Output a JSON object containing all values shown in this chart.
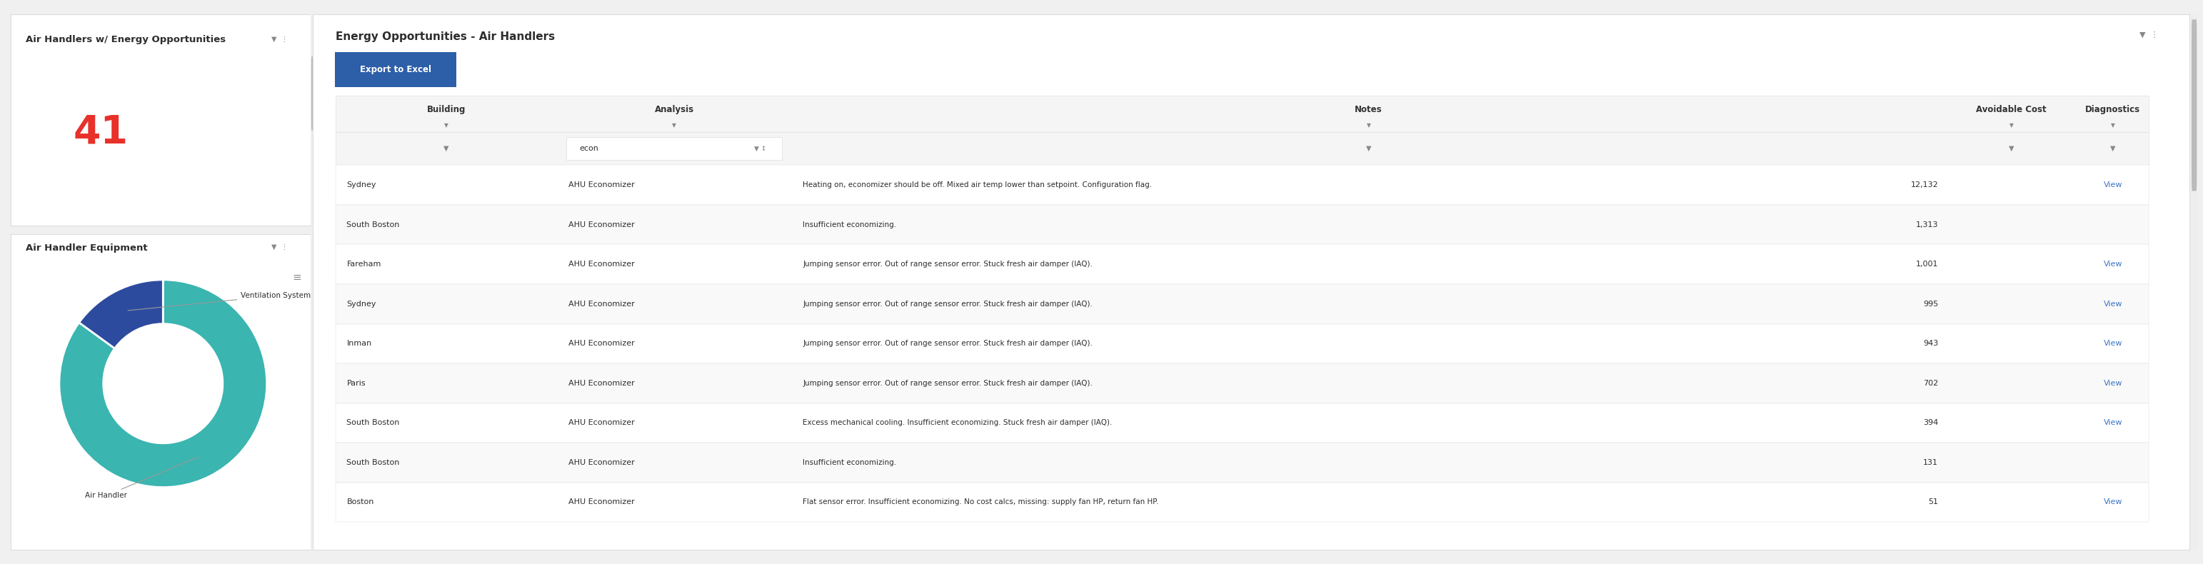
{
  "left_panel_title": "Air Handlers w/ Energy Opportunities",
  "count_value": "41",
  "count_color": "#e8312a",
  "donut_title": "Air Handler Equipment",
  "donut_values": [
    85,
    15
  ],
  "donut_colors": [
    "#3ab5b0",
    "#2d4b9e"
  ],
  "donut_labels": [
    "Air Handler",
    "Ventilation System"
  ],
  "right_panel_title": "Energy Opportunities - Air Handlers",
  "export_button_text": "Export to Excel",
  "export_button_color": "#2d5fa8",
  "export_button_text_color": "#ffffff",
  "table_headers": [
    "Building",
    "Analysis",
    "Notes",
    "Avoidable Cost",
    "Diagnostics"
  ],
  "table_header_color": "#333333",
  "filter_text": "econ",
  "table_rows": [
    {
      "building": "Sydney",
      "analysis": "AHU Economizer",
      "notes": "Heating on, economizer should be off. Mixed air temp lower than setpoint. Configuration flag.",
      "cost": "12,132",
      "diag": "View"
    },
    {
      "building": "South Boston",
      "analysis": "AHU Economizer",
      "notes": "Insufficient economizing.",
      "cost": "1,313",
      "diag": ""
    },
    {
      "building": "Fareham",
      "analysis": "AHU Economizer",
      "notes": "Jumping sensor error. Out of range sensor error. Stuck fresh air damper (IAQ).",
      "cost": "1,001",
      "diag": "View"
    },
    {
      "building": "Sydney",
      "analysis": "AHU Economizer",
      "notes": "Jumping sensor error. Out of range sensor error. Stuck fresh air damper (IAQ).",
      "cost": "995",
      "diag": "View"
    },
    {
      "building": "Inman",
      "analysis": "AHU Economizer",
      "notes": "Jumping sensor error. Out of range sensor error. Stuck fresh air damper (IAQ).",
      "cost": "943",
      "diag": "View"
    },
    {
      "building": "Paris",
      "analysis": "AHU Economizer",
      "notes": "Jumping sensor error. Out of range sensor error. Stuck fresh air damper (IAQ).",
      "cost": "702",
      "diag": "View"
    },
    {
      "building": "South Boston",
      "analysis": "AHU Economizer",
      "notes": "Excess mechanical cooling. Insufficient economizing. Stuck fresh air damper (IAQ).",
      "cost": "394",
      "diag": "View"
    },
    {
      "building": "South Boston",
      "analysis": "AHU Economizer",
      "notes": "Insufficient economizing.",
      "cost": "131",
      "diag": ""
    },
    {
      "building": "Boston",
      "analysis": "AHU Economizer",
      "notes": "Flat sensor error. Insufficient economizing. No cost calcs, missing: supply fan HP, return fan HP.",
      "cost": "51",
      "diag": "View"
    }
  ],
  "bg_color": "#f0f0f0",
  "panel_color": "#ffffff",
  "border_color": "#dddddd",
  "text_dark": "#2d2d2d",
  "text_medium": "#555555",
  "link_color": "#3a75c4",
  "row_alt_color": "#f9f9f9",
  "row_color": "#ffffff",
  "header_bg": "#f5f5f5",
  "filter_icon_color": "#888888",
  "filter_bar_bg": "#f5f5f5"
}
